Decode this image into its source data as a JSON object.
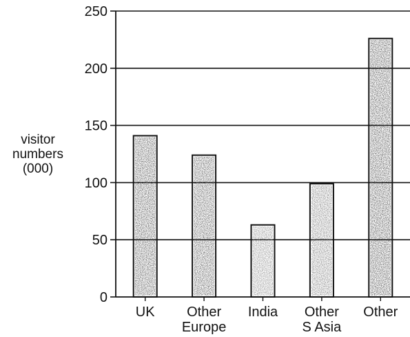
{
  "chart_data": {
    "type": "bar",
    "title": "",
    "xlabel": "",
    "ylabel_lines": [
      "visitor",
      "numbers",
      "(000)"
    ],
    "categories": [
      [
        "UK"
      ],
      [
        "Other",
        "Europe"
      ],
      [
        "India"
      ],
      [
        "Other",
        "S Asia"
      ],
      [
        "Other"
      ]
    ],
    "values": [
      141,
      124,
      63,
      99,
      226
    ],
    "ylim": [
      0,
      250
    ],
    "yticks": [
      0,
      50,
      100,
      150,
      200,
      250
    ],
    "grid": "horizontal",
    "legend": "none",
    "bar_colors": [
      "#4a4a4a",
      "#4f4f4f",
      "#8a8a8a",
      "#7a7a7a",
      "#454545"
    ]
  }
}
